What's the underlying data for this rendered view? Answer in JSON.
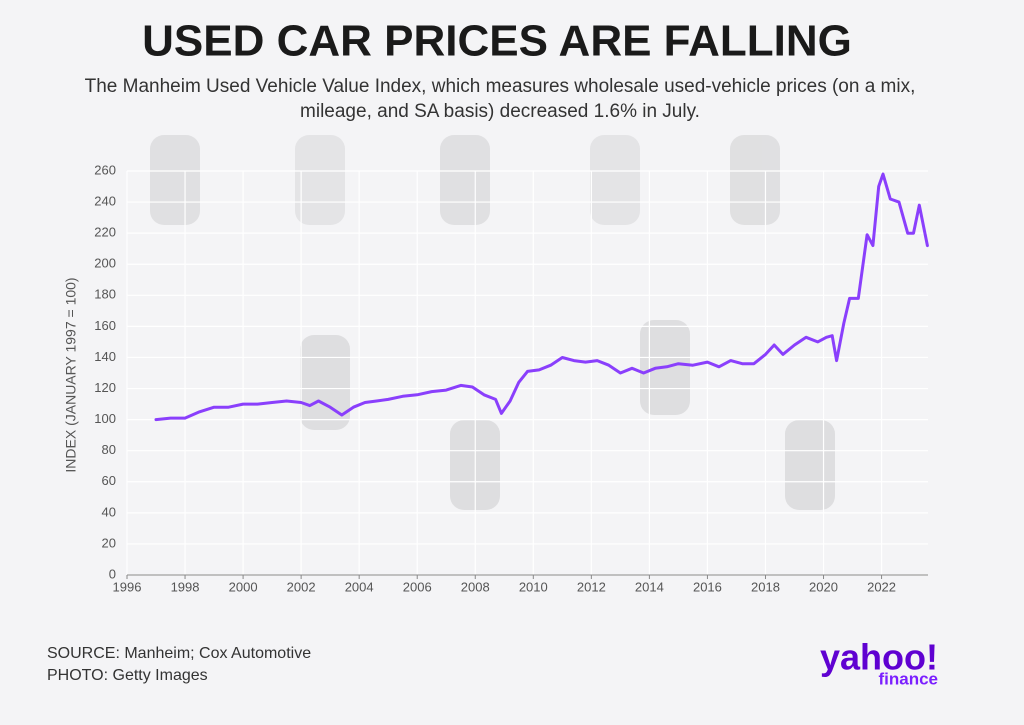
{
  "chart_data": {
    "type": "line",
    "title": "USED CAR PRICES ARE FALLING",
    "subtitle": "The Manheim Used Vehicle Value Index, which measures wholesale used-vehicle prices (on a mix, mileage, and SA basis) decreased 1.6% in July.",
    "y_label": "INDEX (JANUARY 1997 = 100)",
    "source": "SOURCE: Manheim; Cox Automotive",
    "photo": "PHOTO: Getty Images",
    "logo": "yahoo!",
    "logo_sub": "finance",
    "x": [
      1997.0,
      1997.5,
      1998.0,
      1998.5,
      1999.0,
      1999.5,
      2000.0,
      2000.5,
      2001.0,
      2001.5,
      2002.0,
      2002.3,
      2002.6,
      2003.0,
      2003.4,
      2003.8,
      2004.2,
      2004.6,
      2005.0,
      2005.5,
      2006.0,
      2006.5,
      2007.0,
      2007.5,
      2007.9,
      2008.3,
      2008.7,
      2008.9,
      2009.2,
      2009.5,
      2009.8,
      2010.2,
      2010.6,
      2011.0,
      2011.4,
      2011.8,
      2012.2,
      2012.6,
      2013.0,
      2013.4,
      2013.8,
      2014.2,
      2014.6,
      2015.0,
      2015.5,
      2016.0,
      2016.4,
      2016.8,
      2017.2,
      2017.6,
      2018.0,
      2018.3,
      2018.6,
      2019.0,
      2019.4,
      2019.8,
      2020.1,
      2020.3,
      2020.45,
      2020.7,
      2020.9,
      2021.2,
      2021.5,
      2021.7,
      2021.9,
      2022.05,
      2022.3,
      2022.6,
      2022.9,
      2023.1,
      2023.3,
      2023.58
    ],
    "series": [
      {
        "name": "Manheim Used Vehicle Value Index",
        "color": "#8a3ffc",
        "values": [
          100,
          101,
          101,
          105,
          108,
          108,
          110,
          110,
          111,
          112,
          111,
          109,
          112,
          108,
          103,
          108,
          111,
          112,
          113,
          115,
          116,
          118,
          119,
          122,
          121,
          116,
          113,
          104,
          112,
          124,
          131,
          132,
          135,
          140,
          138,
          137,
          138,
          135,
          130,
          133,
          130,
          133,
          134,
          136,
          135,
          137,
          134,
          138,
          136,
          136,
          142,
          148,
          142,
          148,
          153,
          150,
          153,
          154,
          138,
          162,
          178,
          178,
          219,
          212,
          250,
          258,
          242,
          240,
          220,
          220,
          238,
          212
        ]
      }
    ],
    "xlim": [
      1996,
      2023.6
    ],
    "xticks": [
      1996,
      1998,
      2000,
      2002,
      2004,
      2006,
      2008,
      2010,
      2012,
      2014,
      2016,
      2018,
      2020,
      2022
    ],
    "ylim": [
      0,
      260
    ],
    "yticks": [
      0,
      20,
      40,
      60,
      80,
      100,
      120,
      140,
      160,
      180,
      200,
      220,
      240,
      260
    ],
    "grid": true
  }
}
